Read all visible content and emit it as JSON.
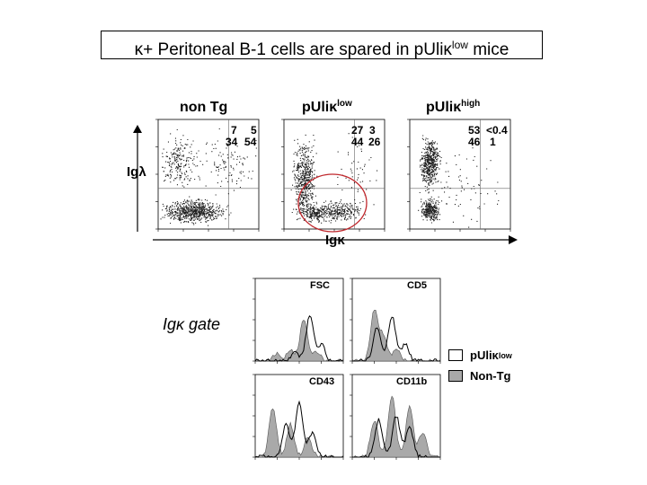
{
  "title": {
    "kappa": "κ",
    "text_a": "+ Peritoneal B-1 cells are spared in pUli",
    "kappa2": "κ",
    "sup": "low",
    "text_b": " mice"
  },
  "dot_panels": [
    {
      "title": "non Tg",
      "sup": "",
      "quadrants": {
        "ul": "7",
        "ur": "5",
        "ll": "34",
        "lr": "54"
      }
    },
    {
      "title": "pUliκ",
      "sup": "low",
      "quadrants": {
        "ul": "27",
        "ur": "3",
        "ll": "44",
        "lr": "26"
      }
    },
    {
      "title": "pUliκ",
      "sup": "high",
      "quadrants": {
        "ul": "53",
        "ur": "<0.4",
        "ll": "46",
        "lr": "1"
      }
    }
  ],
  "axes": {
    "y_label": "Igλ",
    "x_label": "Igκ"
  },
  "gate_label": "Igκ gate",
  "histograms": [
    {
      "label": "FSC"
    },
    {
      "label": "CD5"
    },
    {
      "label": "CD43"
    },
    {
      "label": "CD11b"
    }
  ],
  "legend": [
    {
      "label": "pUliκ",
      "sup": "low",
      "fill": "#ffffff"
    },
    {
      "label": "Non-Tg",
      "sup": "",
      "fill": "#a9a9a9"
    }
  ],
  "colors": {
    "gate_circle": "#c0282d",
    "histogram_fill": "#a9a9a9"
  }
}
